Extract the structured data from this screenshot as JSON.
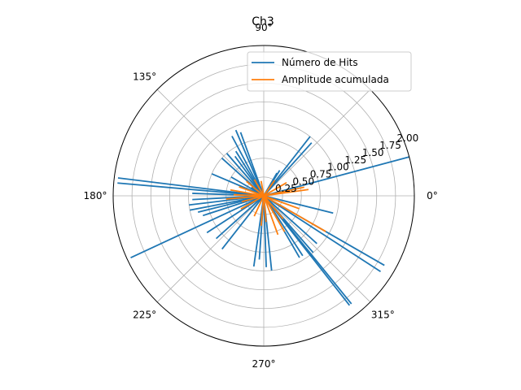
{
  "chart_data": {
    "type": "polar-stem",
    "title": "Ch3",
    "angle_ticks_deg": [
      0,
      45,
      90,
      135,
      180,
      225,
      270,
      315
    ],
    "angle_tick_labels": [
      "0°",
      "",
      "90°",
      "135°",
      "180°",
      "225°",
      "270°",
      "315°"
    ],
    "r_ticks": [
      0.25,
      0.5,
      0.75,
      1.0,
      1.25,
      1.5,
      1.75,
      2.0
    ],
    "r_tick_labels": [
      "0.25",
      "0.50",
      "0.75",
      "1.00",
      "1.25",
      "1.50",
      "1.75",
      "2.00"
    ],
    "rlim": [
      0,
      2.0
    ],
    "r_label_angle_deg": 22.5,
    "grid": true,
    "legend_position": "top-right",
    "series": [
      {
        "name": "Número de Hits",
        "color": "#1f77b4",
        "points": [
          {
            "theta": 15,
            "r": 2.0
          },
          {
            "theta": 48,
            "r": 0.95
          },
          {
            "theta": 52,
            "r": 1.0
          },
          {
            "theta": 58,
            "r": 0.4
          },
          {
            "theta": 60,
            "r": 0.35
          },
          {
            "theta": 110,
            "r": 0.9
          },
          {
            "theta": 113,
            "r": 0.95
          },
          {
            "theta": 118,
            "r": 0.9
          },
          {
            "theta": 122,
            "r": 0.7
          },
          {
            "theta": 126,
            "r": 0.65
          },
          {
            "theta": 131,
            "r": 0.75
          },
          {
            "theta": 138,
            "r": 0.75
          },
          {
            "theta": 146,
            "r": 0.2
          },
          {
            "theta": 150,
            "r": 0.5
          },
          {
            "theta": 157,
            "r": 0.75
          },
          {
            "theta": 173,
            "r": 1.95
          },
          {
            "theta": 175,
            "r": 1.95
          },
          {
            "theta": 178,
            "r": 0.95
          },
          {
            "theta": 183,
            "r": 0.95
          },
          {
            "theta": 187,
            "r": 1.0
          },
          {
            "theta": 191,
            "r": 1.0
          },
          {
            "theta": 194,
            "r": 0.9
          },
          {
            "theta": 198,
            "r": 0.85
          },
          {
            "theta": 205,
            "r": 1.95
          },
          {
            "theta": 213,
            "r": 0.9
          },
          {
            "theta": 222,
            "r": 0.85
          },
          {
            "theta": 232,
            "r": 0.9
          },
          {
            "theta": 262,
            "r": 0.95
          },
          {
            "theta": 266,
            "r": 0.85
          },
          {
            "theta": 272,
            "r": 0.95
          },
          {
            "theta": 276,
            "r": 1.0
          },
          {
            "theta": 300,
            "r": 0.95
          },
          {
            "theta": 303,
            "r": 0.95
          },
          {
            "theta": 308,
            "r": 1.85
          },
          {
            "theta": 309,
            "r": 1.85
          },
          {
            "theta": 311,
            "r": 1.0
          },
          {
            "theta": 318,
            "r": 0.95
          },
          {
            "theta": 327,
            "r": 1.85
          },
          {
            "theta": 330,
            "r": 1.85
          },
          {
            "theta": 346,
            "r": 0.95
          }
        ]
      },
      {
        "name": "Amplitude acumulada",
        "color": "#ff7f0e",
        "points": [
          {
            "theta": 8,
            "r": 0.6
          },
          {
            "theta": 12,
            "r": 0.55
          },
          {
            "theta": 30,
            "r": 0.35
          },
          {
            "theta": 55,
            "r": 0.25
          },
          {
            "theta": 100,
            "r": 0.2
          },
          {
            "theta": 120,
            "r": 0.25
          },
          {
            "theta": 140,
            "r": 0.3
          },
          {
            "theta": 160,
            "r": 0.35
          },
          {
            "theta": 170,
            "r": 0.45
          },
          {
            "theta": 178,
            "r": 0.4
          },
          {
            "theta": 185,
            "r": 0.5
          },
          {
            "theta": 195,
            "r": 0.3
          },
          {
            "theta": 210,
            "r": 0.35
          },
          {
            "theta": 245,
            "r": 0.3
          },
          {
            "theta": 265,
            "r": 0.4
          },
          {
            "theta": 275,
            "r": 0.35
          },
          {
            "theta": 290,
            "r": 0.55
          },
          {
            "theta": 300,
            "r": 0.55
          },
          {
            "theta": 310,
            "r": 0.4
          },
          {
            "theta": 330,
            "r": 0.95
          },
          {
            "theta": 340,
            "r": 0.5
          }
        ]
      }
    ]
  }
}
